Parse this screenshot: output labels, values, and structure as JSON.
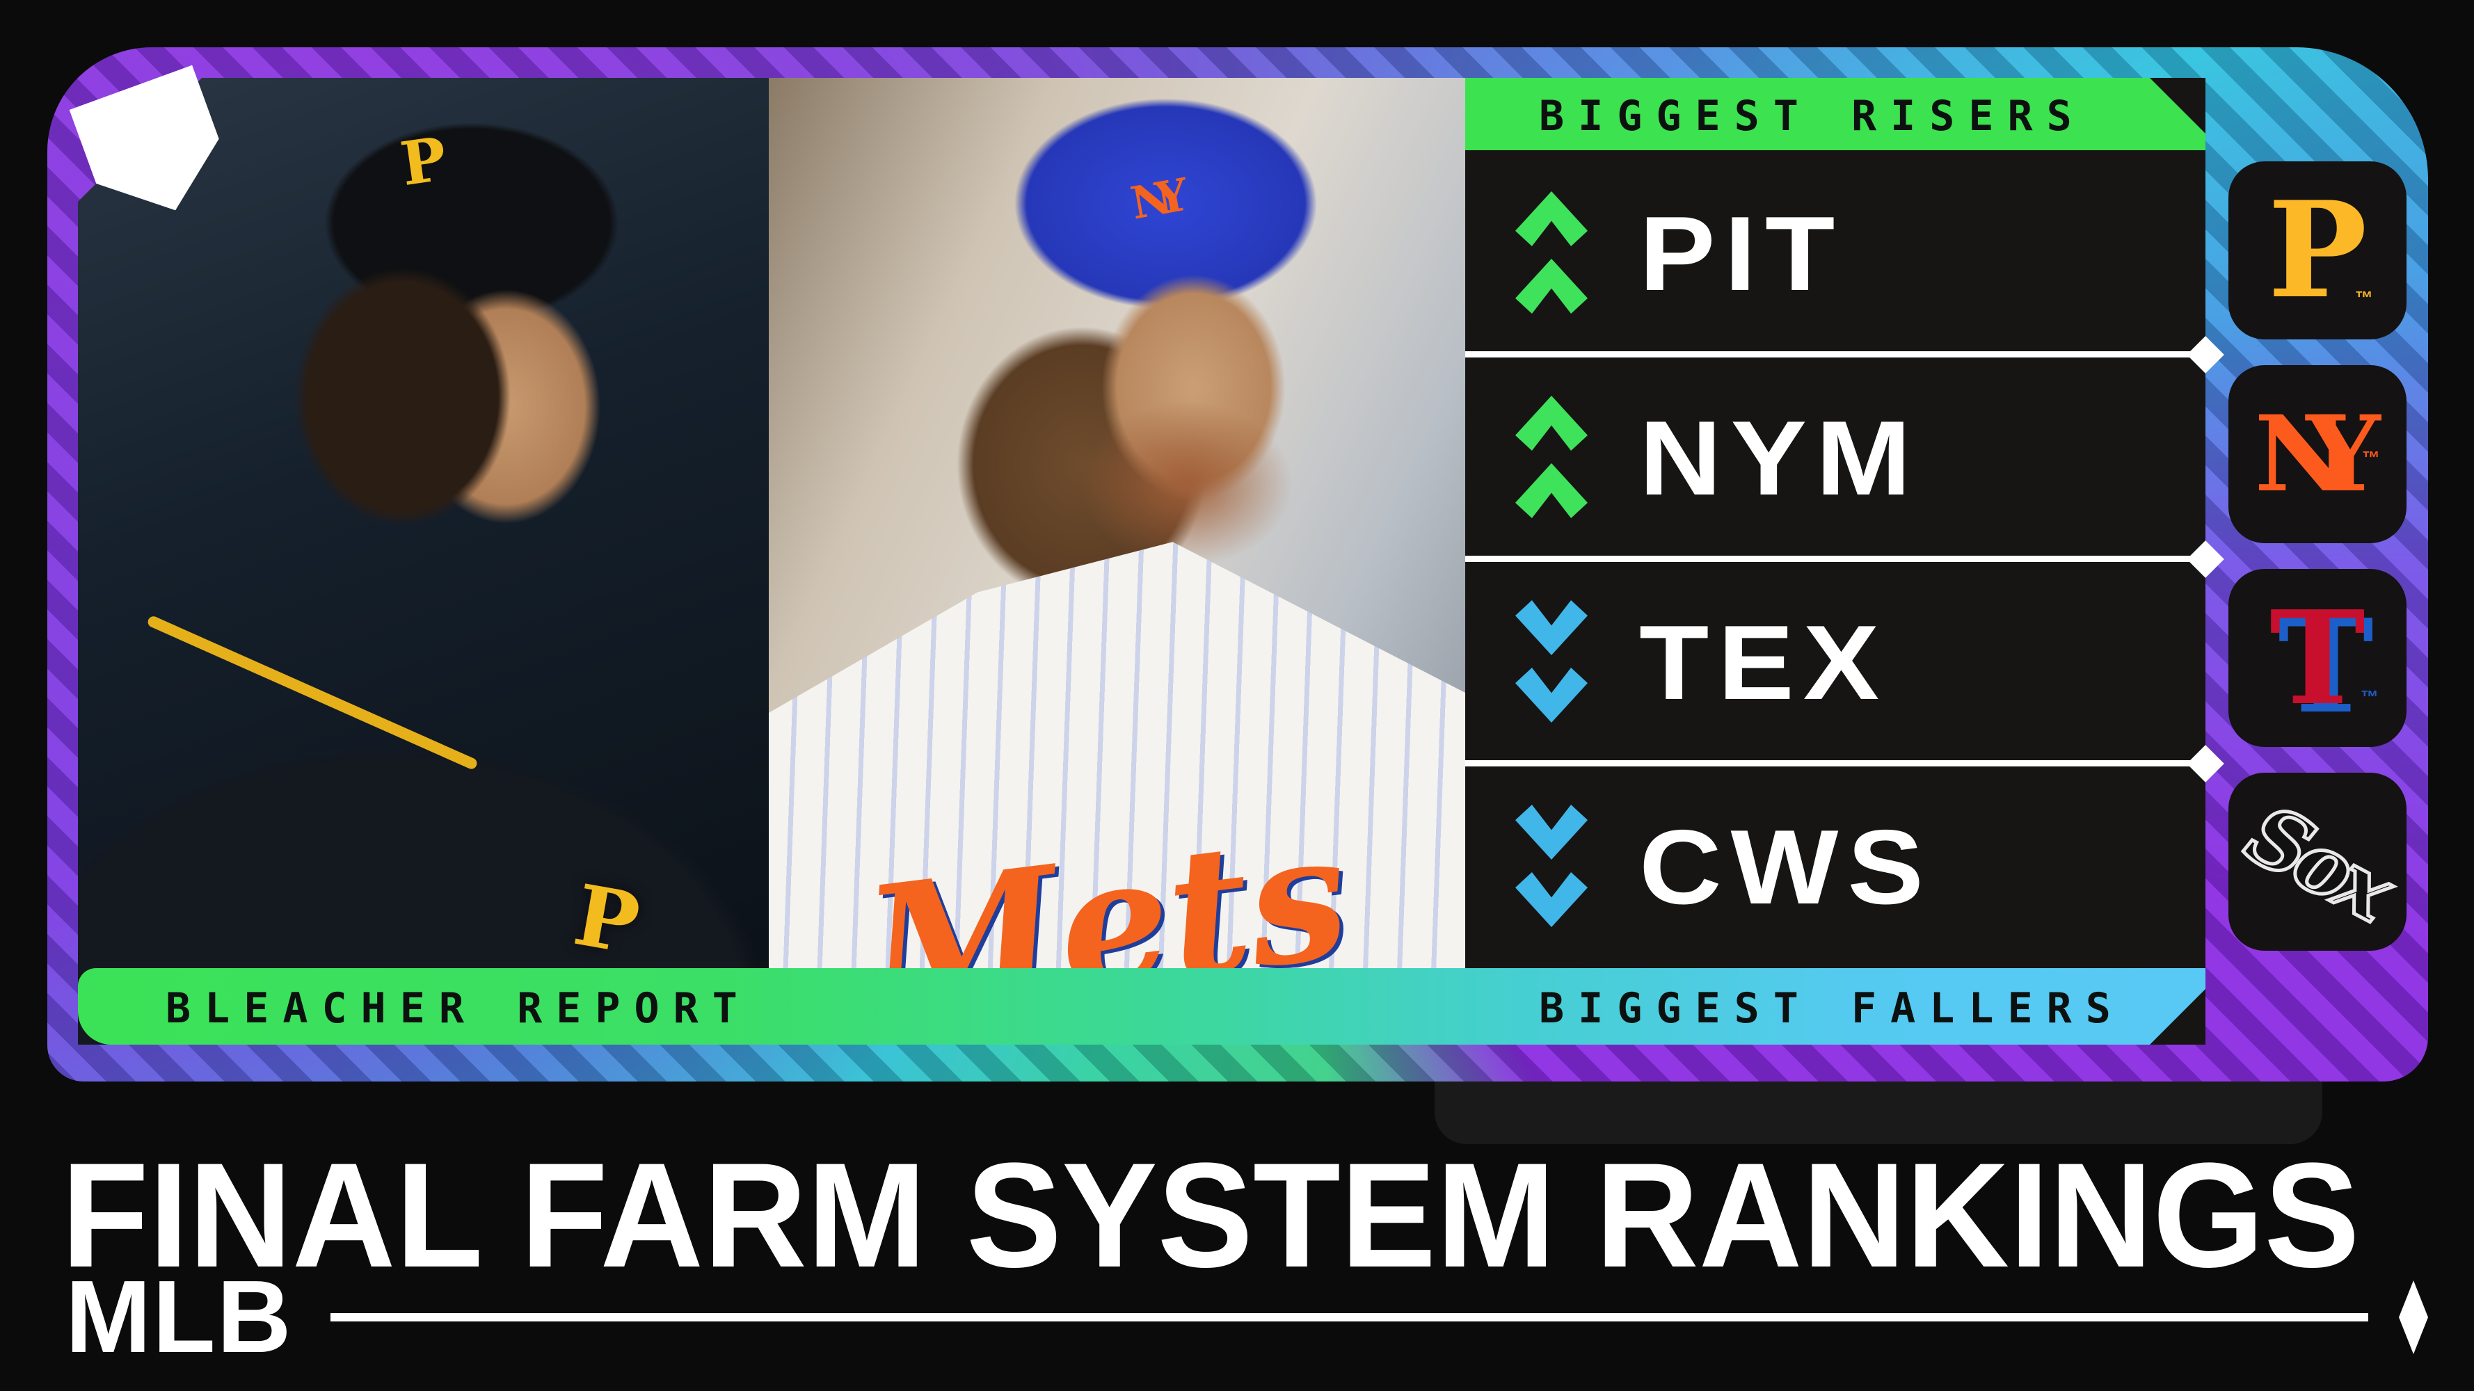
{
  "brand": {
    "source_label": "BLEACHER REPORT",
    "plate_icon": "home-plate-icon"
  },
  "headers": {
    "risers": "BIGGEST RISERS",
    "fallers": "BIGGEST FALLERS"
  },
  "rankings": {
    "rows": [
      {
        "team": "PIT",
        "direction": "up"
      },
      {
        "team": "NYM",
        "direction": "up"
      },
      {
        "team": "TEX",
        "direction": "down"
      },
      {
        "team": "CWS",
        "direction": "down"
      }
    ]
  },
  "logos": [
    {
      "team": "Pittsburgh Pirates",
      "mark": "P",
      "tm": "™",
      "color": "#fdb827"
    },
    {
      "team": "New York Mets",
      "mark": "NY",
      "tm": "™",
      "color": "#fd5a1e"
    },
    {
      "team": "Texas Rangers",
      "mark": "T",
      "tm": "™",
      "color": "#c8102e"
    },
    {
      "team": "Chicago White Sox",
      "mark": "Sox",
      "tm": "",
      "color": "#ffffff"
    }
  ],
  "photos": [
    {
      "alt": "Pittsburgh Pirates pitcher",
      "cap_letter": "P",
      "chest_logo": "P"
    },
    {
      "alt": "New York Mets pitcher",
      "cap_logo": "NY",
      "jersey_script": "Mets"
    }
  ],
  "footer": {
    "title": "FINAL FARM SYSTEM RANKINGS",
    "league": "MLB"
  },
  "colors": {
    "riser_green": "#3ce24f",
    "faller_blue": "#58c9f4",
    "arrow_up": "#3ee25b",
    "arrow_down": "#41b6e8",
    "panel_black": "#171414",
    "background": "#0b0b0b",
    "frame_purple": "#8a2be2",
    "frame_cyan": "#2ec2de"
  }
}
